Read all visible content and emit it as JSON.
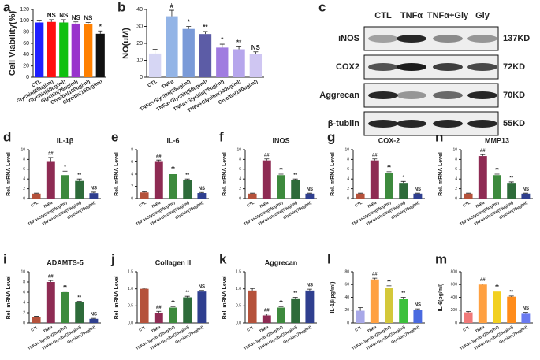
{
  "chart_data": [
    {
      "type": "bar",
      "panel": "a",
      "y_label": "Cell Viability(%)",
      "categories": [
        "CTL",
        "Glycitin(25ug/ml)",
        "Glycitin(50ug/ml)",
        "Glycitin(75ug/ml)",
        "Glycitin(100ug/ml)",
        "Glycitin(150ug/ml)"
      ],
      "values": [
        97,
        98,
        97,
        95,
        94,
        77
      ],
      "errors": [
        3,
        4,
        5,
        3,
        3,
        5
      ],
      "annotations": [
        null,
        "NS",
        "NS",
        "NS",
        "NS",
        "*"
      ],
      "colors": [
        "#1f1fff",
        "#ff1010",
        "#10c010",
        "#9933cc",
        "#ff8000",
        "#111111"
      ],
      "label_color": "#222222",
      "ylim": [
        0,
        120
      ],
      "yticks": [
        0,
        20,
        40,
        60,
        80,
        100,
        120
      ]
    },
    {
      "type": "bar",
      "panel": "b",
      "y_label": "NO(uM)",
      "categories": [
        "CTL",
        "TNFα",
        "TNFα+Glycitin(25ug/ml)",
        "TNFα+Glycitin(50ug/ml)",
        "TNFα+Glycitin(75ug/ml)",
        "TNFα+Glycitin(100ug/ml)",
        "Glycitin(100ug/ml)"
      ],
      "values": [
        14,
        36,
        28.5,
        25.5,
        17.5,
        16.5,
        13.5
      ],
      "errors": [
        2.5,
        3.5,
        1.5,
        1.5,
        2,
        1.5,
        1.5
      ],
      "annotations": [
        null,
        "#",
        "*",
        "**",
        "*",
        "**",
        "NS"
      ],
      "colors": [
        "#d6d6f4",
        "#93b4e6",
        "#7a9ad8",
        "#5c5ca6",
        "#a07ce0",
        "#b6a6ec",
        "#cfc6f2"
      ],
      "label_color": "#6a5acd",
      "ylim": [
        0,
        40
      ],
      "yticks": [
        0,
        10,
        20,
        30,
        40
      ]
    },
    {
      "type": "bar",
      "panel": "d",
      "title": "IL-1β",
      "y_label": "Rel. mRNA Level",
      "categories": [
        "CTL",
        "TNFα",
        "TNFα+Glycitin(25ug/ml)",
        "TNFα+Glycitin(75ug/ml)",
        "Glycitin(75ug/ml)"
      ],
      "values": [
        1,
        7.5,
        4.8,
        3.6,
        1.1
      ],
      "errors": [
        0.1,
        0.9,
        0.8,
        0.4,
        0.2
      ],
      "annotations": [
        null,
        "##",
        "*",
        "**",
        "NS"
      ],
      "colors": [
        "#b5523b",
        "#8e2b53",
        "#3d8a3d",
        "#2e6b3a",
        "#2f3f8f"
      ],
      "label_color": "#222222",
      "ylim": [
        0,
        10
      ],
      "yticks": [
        0,
        2,
        4,
        6,
        8,
        10
      ]
    },
    {
      "type": "bar",
      "panel": "e",
      "title": "IL-6",
      "y_label": "Rel. mRNA Level",
      "categories": [
        "CTL",
        "TNFα",
        "TNFα+Glycitin(25ug/ml)",
        "TNFα+Glycitin(75ug/ml)",
        "Glycitin(75ug/ml)"
      ],
      "values": [
        1,
        6,
        4,
        3,
        0.9
      ],
      "errors": [
        0.1,
        0.3,
        0.2,
        0.2,
        0.1
      ],
      "annotations": [
        null,
        "##",
        "**",
        "**",
        "NS"
      ],
      "colors": [
        "#b5523b",
        "#8e2b53",
        "#3d8a3d",
        "#2e6b3a",
        "#2f3f8f"
      ],
      "label_color": "#222222",
      "ylim": [
        0,
        8
      ],
      "yticks": [
        0,
        2,
        4,
        6,
        8
      ]
    },
    {
      "type": "bar",
      "panel": "f",
      "title": "iNOS",
      "y_label": "Rel. mRNA Level",
      "categories": [
        "CTL",
        "TNFα",
        "TNFα+Glycitin(25ug/ml)",
        "TNFα+Glycitin(75ug/ml)",
        "Glycitin(75ug/ml)"
      ],
      "values": [
        1,
        7.8,
        4.8,
        3.8,
        1.0
      ],
      "errors": [
        0.1,
        0.3,
        0.2,
        0.2,
        0.1
      ],
      "annotations": [
        null,
        "##",
        "**",
        "**",
        "NS"
      ],
      "colors": [
        "#b5523b",
        "#8e2b53",
        "#3d8a3d",
        "#2e6b3a",
        "#2f3f8f"
      ],
      "label_color": "#222222",
      "ylim": [
        0,
        10
      ],
      "yticks": [
        0,
        2,
        4,
        6,
        8,
        10
      ]
    },
    {
      "type": "bar",
      "panel": "g",
      "title": "COX-2",
      "y_label": "Rel. mRNA Level",
      "categories": [
        "CTL",
        "TNFα",
        "TNFα+Glycitin(25ug/ml)",
        "TNFα+Glycitin(75ug/ml)",
        "Glycitin(75ug/ml)"
      ],
      "values": [
        1,
        7.8,
        5.2,
        3.2,
        1.0
      ],
      "errors": [
        0.1,
        0.3,
        0.3,
        0.3,
        0.1
      ],
      "annotations": [
        null,
        "##",
        "**",
        "*",
        "NS"
      ],
      "colors": [
        "#b5523b",
        "#8e2b53",
        "#3d8a3d",
        "#2e6b3a",
        "#2f3f8f"
      ],
      "label_color": "#222222",
      "ylim": [
        0,
        10
      ],
      "yticks": [
        0,
        2,
        4,
        6,
        8,
        10
      ]
    },
    {
      "type": "bar",
      "panel": "h",
      "title": "MMP13",
      "y_label": "Rel. mRNA Level",
      "categories": [
        "CTL",
        "TNFα",
        "TNFα+Glycitin(25ug/ml)",
        "TNFα+Glycitin(75ug/ml)",
        "Glycitin(75ug/ml)"
      ],
      "values": [
        1,
        8.7,
        4.8,
        3.2,
        1.0
      ],
      "errors": [
        0.1,
        0.3,
        0.2,
        0.2,
        0.1
      ],
      "annotations": [
        null,
        "##",
        "**",
        "**",
        "NS"
      ],
      "colors": [
        "#b5523b",
        "#8e2b53",
        "#3d8a3d",
        "#2e6b3a",
        "#2f3f8f"
      ],
      "label_color": "#222222",
      "ylim": [
        0,
        10
      ],
      "yticks": [
        0,
        2,
        4,
        6,
        8,
        10
      ]
    },
    {
      "type": "bar",
      "panel": "i",
      "title": "ADAMTS-5",
      "y_label": "Rel. mRNA Level",
      "categories": [
        "CTL",
        "TNFα",
        "TNFα+Glycitin(25ug/ml)",
        "TNFα+Glycitin(75ug/ml)",
        "Glycitin(75ug/ml)"
      ],
      "values": [
        1.2,
        8,
        6,
        4,
        0.8
      ],
      "errors": [
        0.1,
        0.3,
        0.2,
        0.2,
        0.1
      ],
      "annotations": [
        null,
        "##",
        "**",
        "**",
        "NS"
      ],
      "colors": [
        "#b5523b",
        "#8e2b53",
        "#3d8a3d",
        "#2e6b3a",
        "#2f3f8f"
      ],
      "label_color": "#222222",
      "ylim": [
        0,
        10
      ],
      "yticks": [
        0,
        2,
        4,
        6,
        8,
        10
      ]
    },
    {
      "type": "bar",
      "panel": "j",
      "title": "Collagen II",
      "y_label": "Rel. mRNA Level",
      "categories": [
        "CTL",
        "TNFα",
        "TNFα+Glycitin(25ug/ml)",
        "TNFα+Glycitin(75ug/ml)",
        "Glycitin(75ug/ml)"
      ],
      "values": [
        1.0,
        0.3,
        0.45,
        0.75,
        0.92
      ],
      "errors": [
        0.02,
        0.04,
        0.03,
        0.03,
        0.03
      ],
      "annotations": [
        null,
        "##",
        "**",
        "**",
        "NS"
      ],
      "colors": [
        "#b5523b",
        "#8e2b53",
        "#3d8a3d",
        "#2e6b3a",
        "#2f3f8f"
      ],
      "label_color": "#222222",
      "ylim": [
        0,
        1.5
      ],
      "yticks": [
        {
          "value": 0,
          "label": "0.0"
        },
        {
          "value": 0.5,
          "label": "0.5"
        },
        {
          "value": 1,
          "label": "1.0"
        },
        {
          "value": 1.5,
          "label": "1.5"
        }
      ]
    },
    {
      "type": "bar",
      "panel": "k",
      "title": "Aggrecan",
      "y_label": "Rel. mRNA Level",
      "categories": [
        "CTL",
        "TNFα",
        "TNFα+Glycitin(25ug/ml)",
        "TNFα+Glycitin(75ug/ml)",
        "Glycitin(75ug/ml)"
      ],
      "values": [
        0.95,
        0.22,
        0.45,
        0.72,
        0.95
      ],
      "errors": [
        0.06,
        0.04,
        0.03,
        0.03,
        0.04
      ],
      "annotations": [
        null,
        "##",
        "**",
        "**",
        "NS"
      ],
      "colors": [
        "#b5523b",
        "#8e2b53",
        "#3d8a3d",
        "#2e6b3a",
        "#2f3f8f"
      ],
      "label_color": "#222222",
      "ylim": [
        0,
        1.5
      ],
      "yticks": [
        {
          "value": 0,
          "label": "0.0"
        },
        {
          "value": 0.5,
          "label": "0.5"
        },
        {
          "value": 1,
          "label": "1.0"
        },
        {
          "value": 1.5,
          "label": "1.5"
        }
      ]
    },
    {
      "type": "bar",
      "panel": "l",
      "y_label": "IL-1β(pg/ml)",
      "categories": [
        "CTL",
        "TNFα",
        "TNFα+Glycitin(25ug/ml)",
        "TNFα+Glycitin(75ug/ml)",
        "Glycitin(75ug/ml)"
      ],
      "values": [
        19,
        68,
        55,
        38,
        20
      ],
      "errors": [
        5,
        2,
        3,
        2,
        2
      ],
      "annotations": [
        null,
        "##",
        "**",
        "**",
        "NS"
      ],
      "colors": [
        "#a8a8e8",
        "#ffa040",
        "#d4c83a",
        "#3cc03c",
        "#4a6ae0"
      ],
      "label_color": "#2a3ad0",
      "ylim": [
        0,
        80
      ],
      "yticks": [
        0,
        20,
        40,
        60,
        80
      ]
    },
    {
      "type": "bar",
      "panel": "m",
      "y_label": "IL-6(pg/ml)",
      "categories": [
        "CTL",
        "TNFα",
        "TNFα+Glycitin(25ug/ml)",
        "TNFα+Glycitin(75ug/ml)",
        "Glycitin(75ug/ml)"
      ],
      "values": [
        165,
        600,
        490,
        410,
        155
      ],
      "errors": [
        15,
        10,
        10,
        10,
        10
      ],
      "annotations": [
        null,
        "##",
        "**",
        "**",
        "NS"
      ],
      "colors": [
        "#f07878",
        "#ffa040",
        "#f2d020",
        "#ff8c1a",
        "#6a7af0"
      ],
      "label_color": "#2a3ad0",
      "ylim": [
        0,
        800
      ],
      "yticks": [
        0,
        200,
        400,
        600,
        800
      ]
    }
  ],
  "blot": {
    "panel": "c",
    "lanes": [
      "CTL",
      "TNFα",
      "TNFα+Gly",
      "Gly"
    ],
    "rows": [
      {
        "protein": "iNOS",
        "size": "137KD"
      },
      {
        "protein": "COX2",
        "size": "72KD"
      },
      {
        "protein": "Aggrecan",
        "size": "70KD"
      },
      {
        "protein": "β-tublin",
        "size": "55KD"
      }
    ]
  }
}
